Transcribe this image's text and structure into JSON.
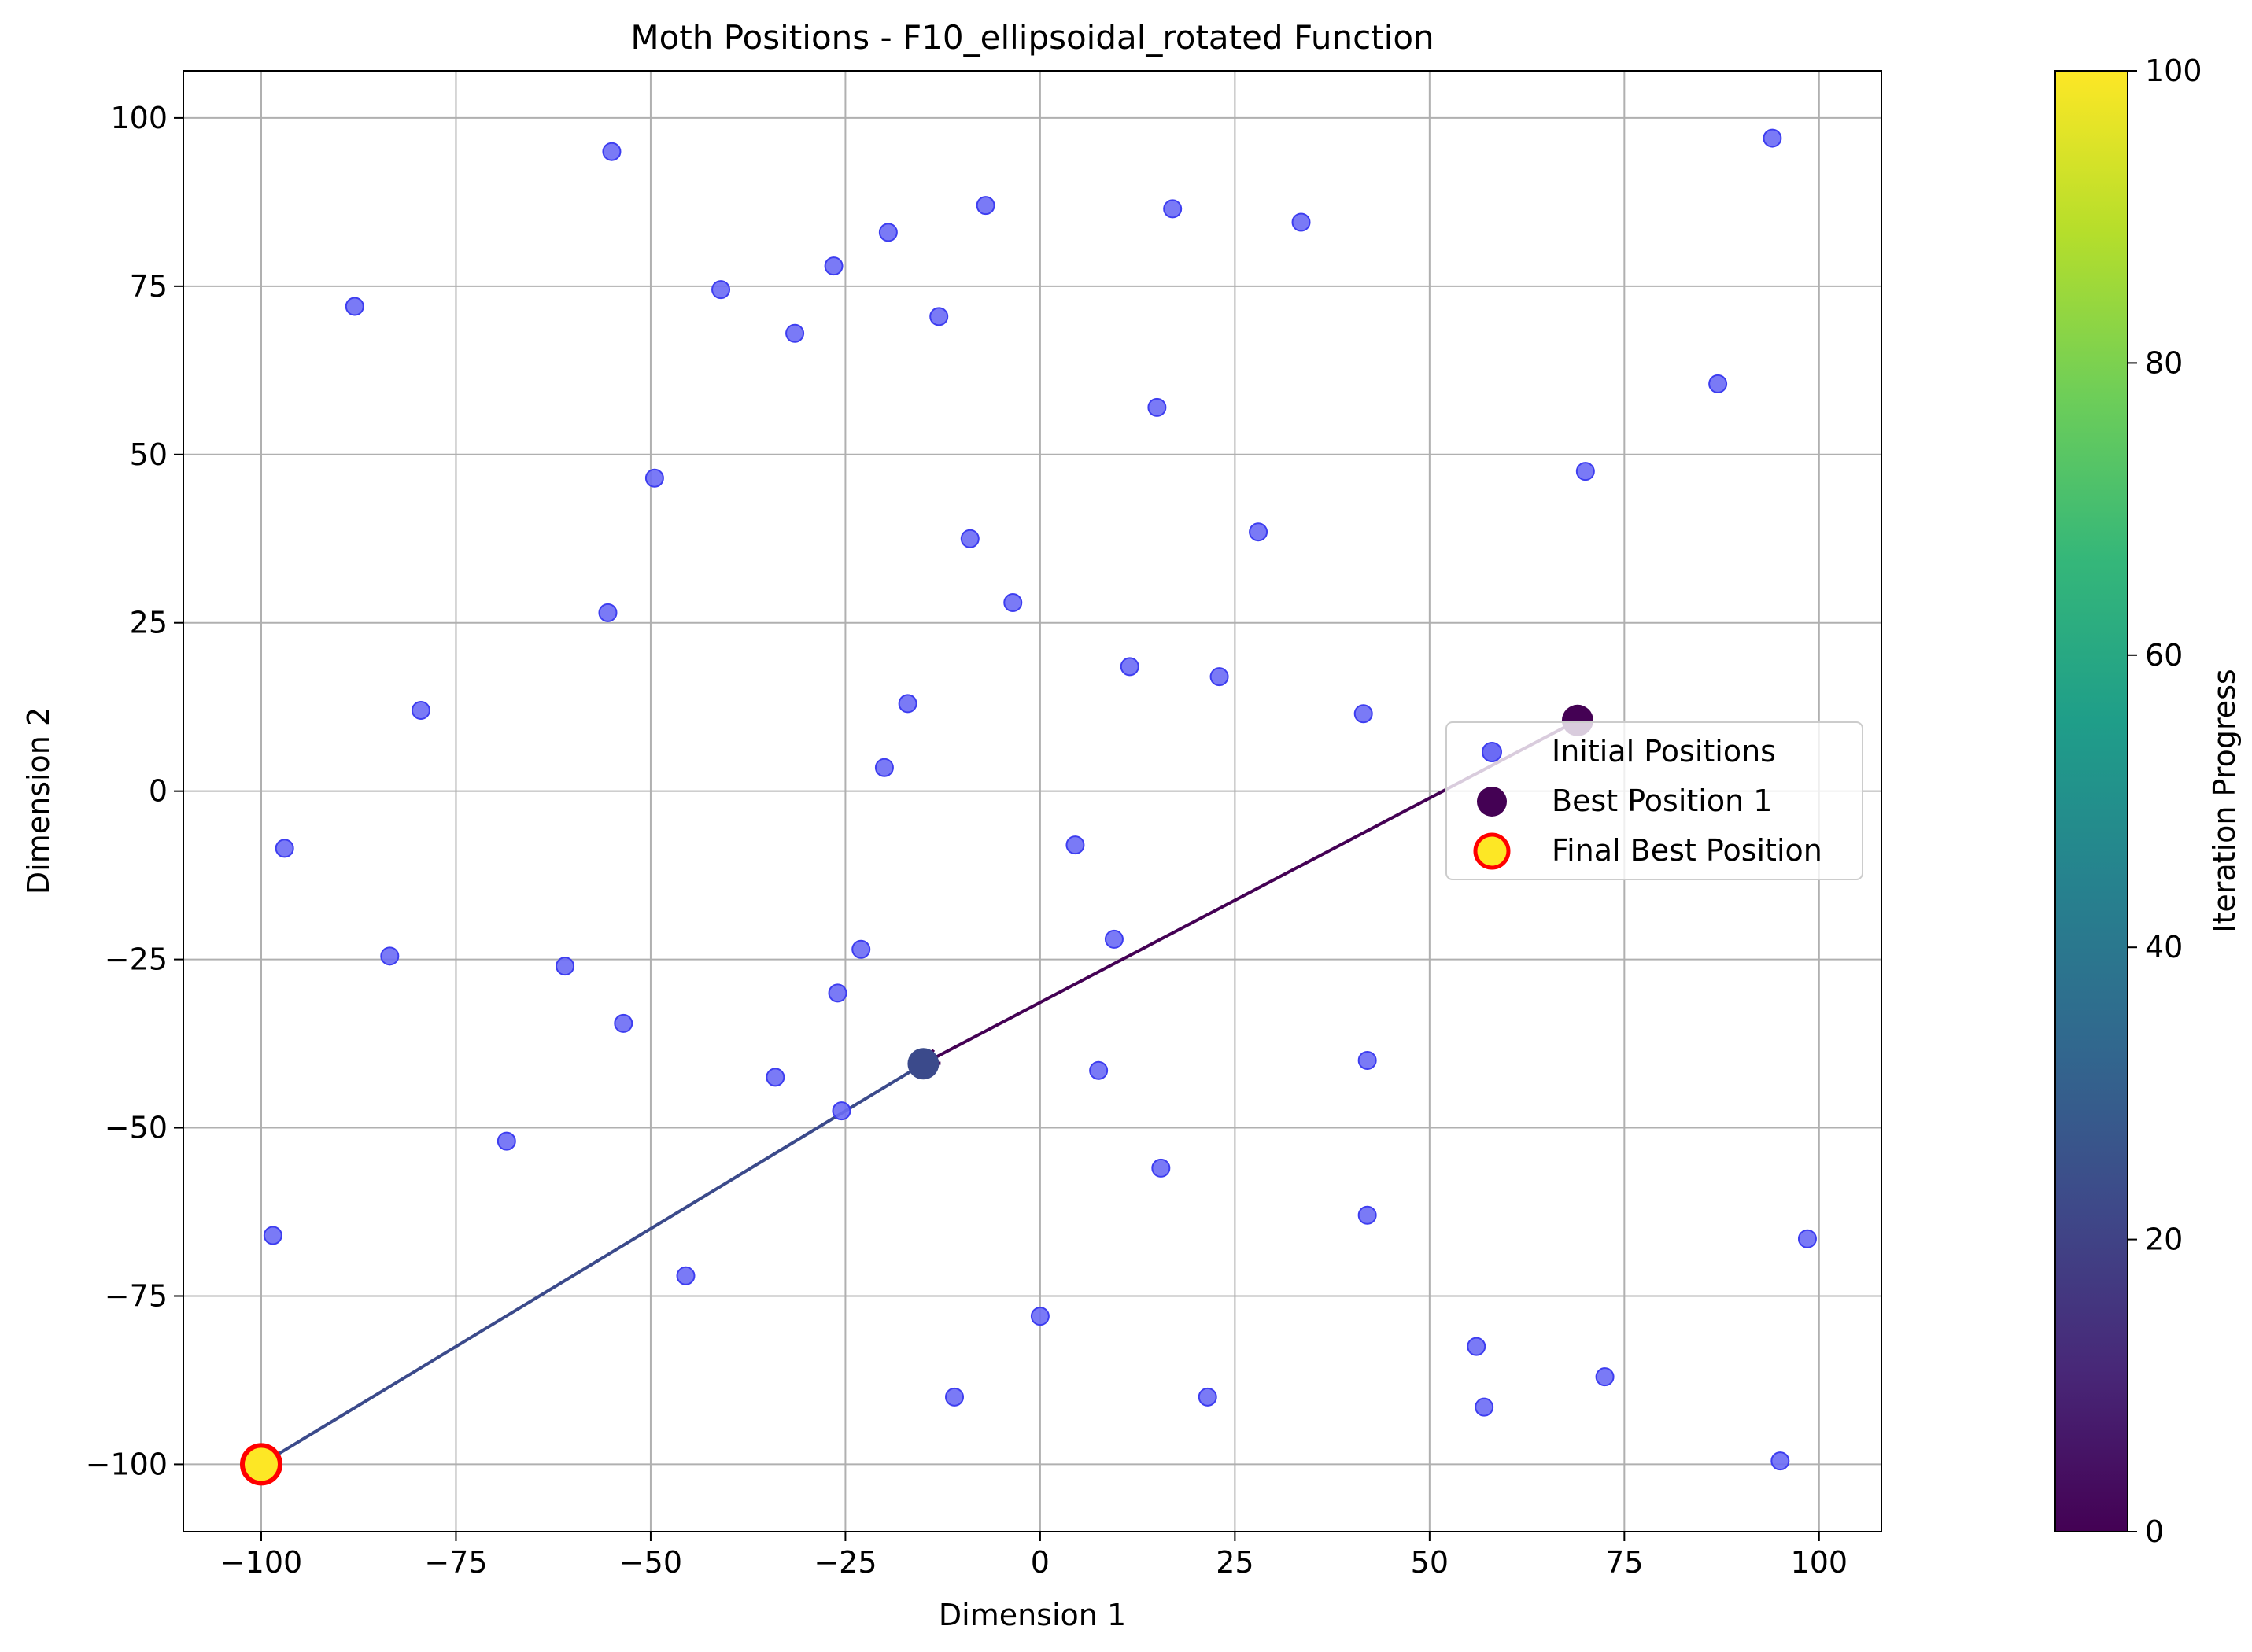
{
  "chart_data": {
    "type": "scatter",
    "title": "Moth Positions - F10_ellipsoidal_rotated Function",
    "xlabel": "Dimension 1",
    "ylabel": "Dimension 2",
    "xlim": [
      -110,
      108
    ],
    "ylim": [
      -110,
      107
    ],
    "x_ticks": [
      -100,
      -75,
      -50,
      -25,
      0,
      25,
      50,
      75,
      100
    ],
    "y_ticks": [
      -100,
      -75,
      -50,
      -25,
      0,
      25,
      50,
      75,
      100
    ],
    "x_tick_labels": [
      "−100",
      "−75",
      "−50",
      "−25",
      "0",
      "25",
      "50",
      "75",
      "100"
    ],
    "y_tick_labels": [
      "−100",
      "−75",
      "−50",
      "−25",
      "0",
      "25",
      "50",
      "75",
      "100"
    ],
    "grid": true,
    "legend_position": "center-right",
    "series": [
      {
        "name": "Initial Positions",
        "color": "#6b6bf5",
        "points": [
          [
            -55,
            95
          ],
          [
            -7,
            87
          ],
          [
            17,
            86.5
          ],
          [
            94,
            97
          ],
          [
            33.5,
            84.5
          ],
          [
            -19.5,
            83
          ],
          [
            -26.5,
            78
          ],
          [
            -88,
            72
          ],
          [
            -41,
            74.5
          ],
          [
            -13,
            70.5
          ],
          [
            -31.5,
            68
          ],
          [
            15,
            57
          ],
          [
            87,
            60.5
          ],
          [
            -49.5,
            46.5
          ],
          [
            70,
            47.5
          ],
          [
            -9,
            37.5
          ],
          [
            28,
            38.5
          ],
          [
            -3.5,
            28
          ],
          [
            -55.5,
            26.5
          ],
          [
            11.5,
            18.5
          ],
          [
            23,
            17
          ],
          [
            -17,
            13
          ],
          [
            -79.5,
            12
          ],
          [
            41.5,
            11.5
          ],
          [
            -20,
            3.5
          ],
          [
            -97,
            -8.5
          ],
          [
            4.5,
            -8
          ],
          [
            9.5,
            -22
          ],
          [
            -83.5,
            -24.5
          ],
          [
            -61,
            -26
          ],
          [
            -23,
            -23.5
          ],
          [
            -26,
            -30
          ],
          [
            -53.5,
            -34.5
          ],
          [
            -34,
            -42.5
          ],
          [
            7.5,
            -41.5
          ],
          [
            42,
            -40
          ],
          [
            -25.5,
            -47.5
          ],
          [
            -68.5,
            -52
          ],
          [
            15.5,
            -56
          ],
          [
            42,
            -63
          ],
          [
            -98.5,
            -66
          ],
          [
            98.5,
            -66.5
          ],
          [
            -45.5,
            -72
          ],
          [
            0,
            -78
          ],
          [
            56,
            -82.5
          ],
          [
            72.5,
            -87
          ],
          [
            -11,
            -90
          ],
          [
            21.5,
            -90
          ],
          [
            57,
            -91.5
          ],
          [
            95,
            -99.5
          ]
        ]
      },
      {
        "name": "Best Position 1",
        "color": "#440154",
        "points": [
          [
            69,
            10.5
          ]
        ]
      },
      {
        "name": "Final Best Position",
        "color": "#fde725",
        "edge_color": "#ff0000",
        "points": [
          [
            -100,
            -100
          ]
        ]
      }
    ],
    "trajectory": [
      {
        "from": [
          69,
          10.5
        ],
        "to": [
          -15,
          -40.5
        ],
        "color": "#440154"
      },
      {
        "from": [
          -15,
          -40.5
        ],
        "to": [
          -100,
          -100
        ],
        "color": "#3b4a8b"
      }
    ],
    "intermediate_points": [
      {
        "point": [
          -15,
          -40.5
        ],
        "color": "#3b4a8b"
      }
    ],
    "colorbar": {
      "label": "Iteration Progress",
      "colormap": "viridis",
      "range": [
        0,
        100
      ],
      "ticks": [
        0,
        20,
        40,
        60,
        80,
        100
      ],
      "tick_labels": [
        "0",
        "20",
        "40",
        "60",
        "80",
        "100"
      ],
      "stops": [
        "#440154",
        "#482878",
        "#3e4989",
        "#31688e",
        "#26828e",
        "#1f9e89",
        "#35b779",
        "#6ece58",
        "#b5de2b",
        "#fde725"
      ]
    }
  }
}
